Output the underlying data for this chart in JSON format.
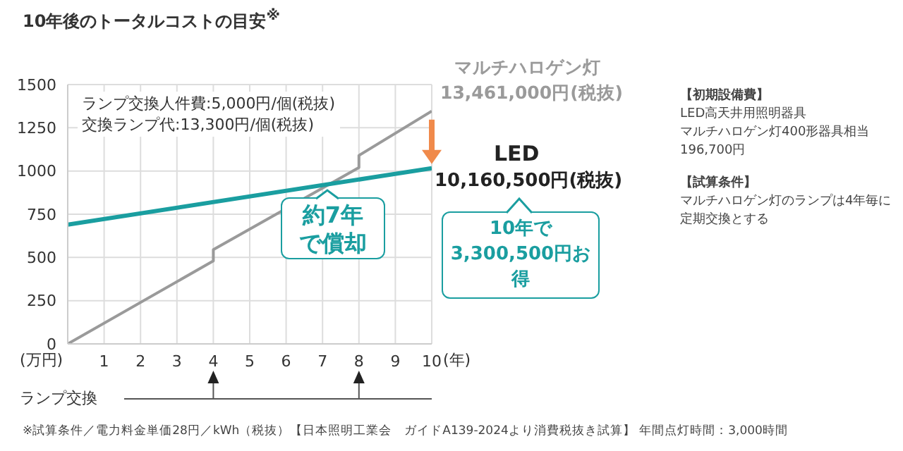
{
  "chart_data": {
    "type": "line",
    "title": "10年後のトータルコストの目安$^{※}$",
    "xlabel": "(年)",
    "ylabel": "(万円)",
    "xlim": [
      0,
      10
    ],
    "xticks": [
      1,
      2,
      3,
      4,
      5,
      6,
      7,
      8,
      9,
      10
    ],
    "ylim": [
      0,
      1500
    ],
    "yticks": [
      0,
      250,
      500,
      750,
      1000,
      1250,
      1500
    ],
    "grid": true,
    "series": [
      {
        "name": "マルチハロゲン灯",
        "color": "#9a9a9a",
        "x": [
          0,
          4,
          4,
          8,
          8,
          10
        ],
        "values": [
          0,
          480,
          545,
          1020,
          1090,
          1346.1
        ]
      },
      {
        "name": "LED",
        "color": "#1a9ea0",
        "x": [
          0,
          10
        ],
        "values": [
          690,
          1016.05
        ]
      }
    ],
    "annotations": [
      "ランプ交換人件費:5,000円/個(税抜)",
      "交換ランプ代:13,300円/個(税抜)",
      "13,461,000円(税抜)",
      "10,160,500円(税抜)",
      "約7年で償却",
      "10年で3,300,500円お得",
      "ランプ交換",
      "【初期設備費】",
      "LED高天井用照明器具",
      "マルチハロゲン灯400形器具相当",
      "196,700円",
      "【試算条件】",
      "マルチハロゲン灯のランプは4年毎に定期交換とする",
      "※試算条件／電力料金単価28円／kWh（税抜）【日本照明工業会　ガイドA139-2024より消費税抜き試算】 年間点灯時間：3,000時間"
    ]
  }
}
